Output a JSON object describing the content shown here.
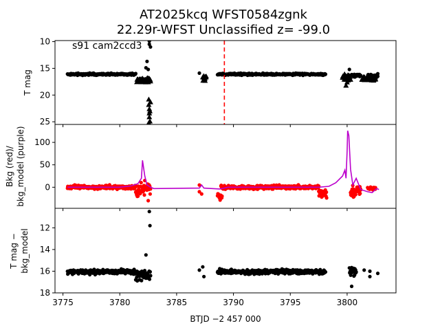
{
  "chart_data": [
    {
      "panel": "top",
      "type": "scatter",
      "title_line1": "AT2025kcq  WFST0584zgnk",
      "title_line2": "22.29r-WFST Unclassified z= -99.0",
      "annotation": "s91 cam2ccd3",
      "ylabel": "T mag",
      "xlim": [
        3774.3,
        3804.3
      ],
      "ylim": [
        25.5,
        9.8
      ],
      "yticks": [
        10,
        15,
        20,
        25
      ],
      "vline_x": 3789.2,
      "vline_color": "#ff0000",
      "series": [
        {
          "marker": "circle",
          "color": "#000000",
          "segments": [
            {
              "x0": 3775.4,
              "x1": 3781.4,
              "y": 16.1,
              "spread": 0.25
            },
            {
              "x0": 3788.6,
              "x1": 3798.1,
              "y": 16.1,
              "spread": 0.25
            },
            {
              "x0": 3800.4,
              "x1": 3801.2,
              "y": 16.3,
              "spread": 0.4
            },
            {
              "x0": 3801.8,
              "x1": 3802.7,
              "y": 16.4,
              "spread": 0.4
            }
          ],
          "points": [
            [
              3787.0,
              15.9
            ],
            [
              3782.3,
              14.9
            ],
            [
              3782.4,
              13.7
            ],
            [
              3782.5,
              15.2
            ],
            [
              3782.6,
              9.9
            ],
            [
              3782.6,
              10.5
            ],
            [
              3782.7,
              11.0
            ],
            [
              3799.8,
              16.2
            ],
            [
              3800.2,
              15.2
            ],
            [
              3802.7,
              16.0
            ]
          ]
        },
        {
          "marker": "triangle",
          "color": "#000000",
          "segments": [
            {
              "x0": 3781.5,
              "x1": 3782.7,
              "y": 17.2,
              "spread": 0.6
            },
            {
              "x0": 3787.3,
              "x1": 3787.6,
              "y": 16.8,
              "spread": 0.6
            },
            {
              "x0": 3799.6,
              "x1": 3800.3,
              "y": 16.6,
              "spread": 0.8
            },
            {
              "x0": 3801.3,
              "x1": 3802.5,
              "y": 17.0,
              "spread": 0.6
            }
          ],
          "points": [
            [
              3782.55,
              20.8
            ],
            [
              3782.55,
              21.8
            ],
            [
              3782.6,
              22.6
            ],
            [
              3782.6,
              23.4
            ],
            [
              3782.6,
              24.1
            ],
            [
              3782.65,
              24.9
            ],
            [
              3782.55,
              25.2
            ],
            [
              3782.65,
              23.0
            ],
            [
              3782.7,
              21.3
            ],
            [
              3799.9,
              18.2
            ],
            [
              3800.0,
              17.6
            ],
            [
              3787.5,
              17.3
            ]
          ]
        }
      ]
    },
    {
      "panel": "middle",
      "type": "line",
      "ylabel_line1": "Bkg (red)/",
      "ylabel_line2": "bkg_model (purple)",
      "xlim": [
        3774.3,
        3804.3
      ],
      "ylim": [
        -47,
        140
      ],
      "yticks": [
        0,
        50,
        100
      ],
      "scatter_color": "#ff0000",
      "line_color": "#bb00cc",
      "scatter_segments": [
        {
          "x0": 3775.4,
          "x1": 3781.4,
          "y": 0,
          "spread": 6
        },
        {
          "x0": 3788.9,
          "x1": 3797.5,
          "y": 0,
          "spread": 6
        },
        {
          "x0": 3781.4,
          "x1": 3782.7,
          "y": -5,
          "spread": 22
        },
        {
          "x0": 3797.5,
          "x1": 3798.2,
          "y": -12,
          "spread": 18
        },
        {
          "x0": 3788.6,
          "x1": 3789.0,
          "y": -18,
          "spread": 15
        },
        {
          "x0": 3800.3,
          "x1": 3801.2,
          "y": -10,
          "spread": 20
        },
        {
          "x0": 3801.8,
          "x1": 3802.5,
          "y": -3,
          "spread": 6
        }
      ],
      "scatter_points": [
        [
          3787.0,
          5
        ],
        [
          3787.0,
          -10
        ],
        [
          3787.2,
          -15
        ],
        [
          3782.2,
          15
        ],
        [
          3782.5,
          -30
        ]
      ],
      "model_line": [
        [
          3775.4,
          0
        ],
        [
          3780.0,
          0
        ],
        [
          3781.0,
          3
        ],
        [
          3781.6,
          8
        ],
        [
          3781.9,
          20
        ],
        [
          3782.0,
          60
        ],
        [
          3782.2,
          25
        ],
        [
          3782.4,
          5
        ],
        [
          3782.7,
          0
        ],
        [
          3783.0,
          -3
        ],
        [
          3787.0,
          -2
        ],
        [
          3787.2,
          5
        ],
        [
          3787.4,
          -2
        ],
        [
          3788.8,
          -4
        ],
        [
          3789.5,
          0
        ],
        [
          3797.5,
          0
        ],
        [
          3798.4,
          2
        ],
        [
          3799.0,
          10
        ],
        [
          3799.6,
          25
        ],
        [
          3799.8,
          38
        ],
        [
          3799.9,
          20
        ],
        [
          3800.0,
          80
        ],
        [
          3800.05,
          126
        ],
        [
          3800.15,
          115
        ],
        [
          3800.3,
          40
        ],
        [
          3800.5,
          5
        ],
        [
          3800.8,
          20
        ],
        [
          3801.2,
          -5
        ],
        [
          3801.8,
          -10
        ],
        [
          3802.2,
          -12
        ],
        [
          3802.6,
          -3
        ],
        [
          3802.8,
          -5
        ]
      ]
    },
    {
      "panel": "bottom",
      "type": "scatter",
      "ylabel_line1": "T mag −",
      "ylabel_line2": "bkg_model",
      "xlabel": "BTJD −2 457 000",
      "xlim": [
        3774.3,
        3804.3
      ],
      "xticks": [
        3775,
        3780,
        3785,
        3790,
        3795,
        3800
      ],
      "ylim": [
        18.0,
        10.2
      ],
      "yticks": [
        12,
        14,
        16,
        18
      ],
      "color": "#000000",
      "segments": [
        {
          "x0": 3775.4,
          "x1": 3781.4,
          "y": 16.05,
          "spread": 0.3
        },
        {
          "x0": 3788.6,
          "x1": 3798.1,
          "y": 16.05,
          "spread": 0.3
        },
        {
          "x0": 3781.4,
          "x1": 3782.7,
          "y": 16.4,
          "spread": 0.8
        },
        {
          "x0": 3800.2,
          "x1": 3800.8,
          "y": 16.0,
          "spread": 0.6
        }
      ],
      "points": [
        [
          3782.6,
          10.5
        ],
        [
          3782.65,
          11.8
        ],
        [
          3782.3,
          14.5
        ],
        [
          3782.7,
          16.4
        ],
        [
          3787.0,
          15.9
        ],
        [
          3787.3,
          15.6
        ],
        [
          3787.4,
          16.5
        ],
        [
          3800.4,
          17.4
        ],
        [
          3801.5,
          15.9
        ],
        [
          3802.0,
          16.0
        ],
        [
          3802.7,
          16.2
        ],
        [
          3802.0,
          16.5
        ]
      ]
    }
  ]
}
